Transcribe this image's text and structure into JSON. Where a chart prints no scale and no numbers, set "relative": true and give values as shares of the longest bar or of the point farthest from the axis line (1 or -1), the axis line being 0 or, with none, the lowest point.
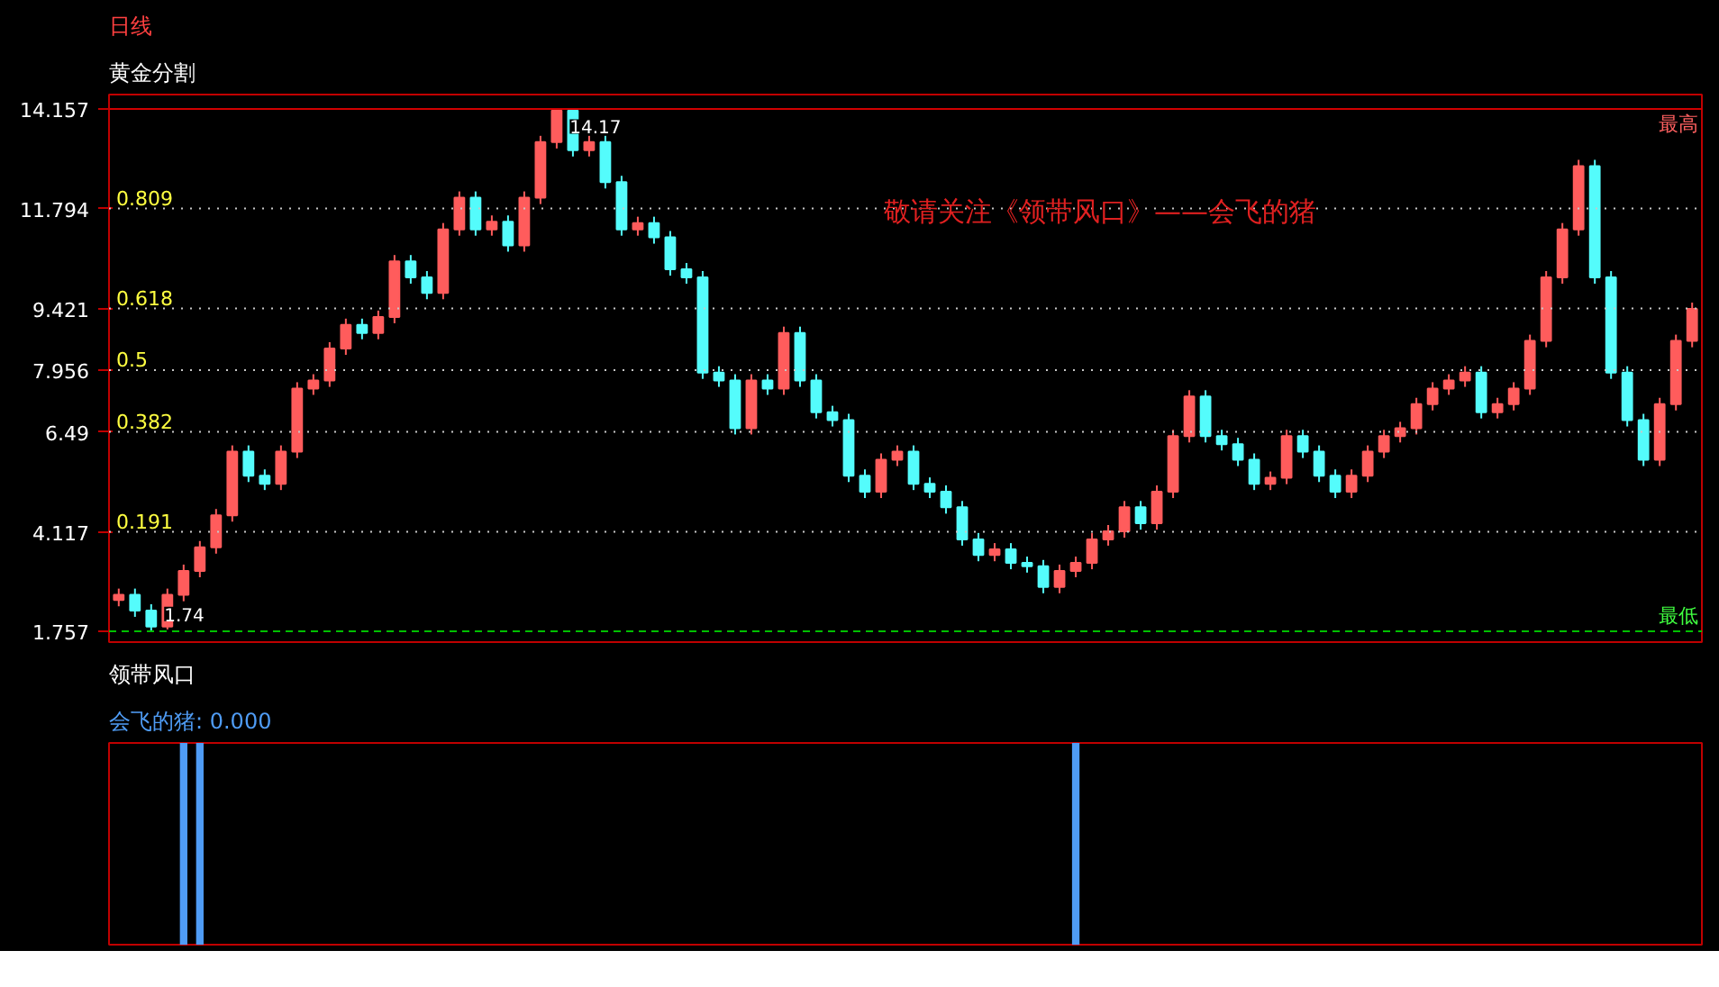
{
  "chart_data": [
    {
      "type": "candlestick",
      "title": "日线",
      "subtitle": "黄金分割",
      "categories": [
        null,
        null,
        null,
        null,
        null,
        null,
        null,
        null,
        null,
        null,
        null,
        null,
        null,
        null,
        null,
        null,
        null,
        null,
        null,
        null,
        null,
        null,
        null,
        null,
        null,
        null,
        null,
        null,
        null,
        null,
        null,
        null,
        null,
        null,
        null,
        null,
        null,
        null,
        null,
        null,
        null,
        null,
        null,
        null,
        null,
        null,
        null,
        null,
        null,
        null,
        null,
        null,
        null,
        null,
        null,
        null,
        null,
        null,
        null,
        null,
        null,
        null,
        null,
        null,
        null,
        null,
        null,
        null,
        null,
        null,
        null,
        null,
        null,
        null,
        null,
        null,
        null,
        null,
        null,
        null,
        null,
        null,
        null,
        null,
        null,
        null,
        null,
        null,
        null,
        null,
        null,
        null,
        null,
        null,
        null,
        null,
        null,
        null
      ],
      "ohlc": [
        [
          2.5,
          2.77,
          2.35,
          2.62
        ],
        [
          2.62,
          2.77,
          2.1,
          2.25
        ],
        [
          2.25,
          2.4,
          1.74,
          1.87
        ],
        [
          1.87,
          2.77,
          1.8,
          2.62
        ],
        [
          2.62,
          3.34,
          2.47,
          3.19
        ],
        [
          3.19,
          3.9,
          3.04,
          3.75
        ],
        [
          3.75,
          4.66,
          3.6,
          4.51
        ],
        [
          4.51,
          6.17,
          4.36,
          6.02
        ],
        [
          6.02,
          6.17,
          5.3,
          5.45
        ],
        [
          5.45,
          5.6,
          5.11,
          5.26
        ],
        [
          5.26,
          6.17,
          5.11,
          6.02
        ],
        [
          6.02,
          7.67,
          5.87,
          7.52
        ],
        [
          7.52,
          7.86,
          7.37,
          7.71
        ],
        [
          7.71,
          8.62,
          7.56,
          8.47
        ],
        [
          8.47,
          9.18,
          8.32,
          9.03
        ],
        [
          9.03,
          9.18,
          8.69,
          8.84
        ],
        [
          8.84,
          9.37,
          8.69,
          9.22
        ],
        [
          9.22,
          10.69,
          9.07,
          10.54
        ],
        [
          10.54,
          10.69,
          10.01,
          10.16
        ],
        [
          10.16,
          10.31,
          9.64,
          9.79
        ],
        [
          9.79,
          11.45,
          9.64,
          11.3
        ],
        [
          11.3,
          12.2,
          11.15,
          12.05
        ],
        [
          12.05,
          12.2,
          11.15,
          11.3
        ],
        [
          11.3,
          11.63,
          11.15,
          11.48
        ],
        [
          11.48,
          11.63,
          10.77,
          10.92
        ],
        [
          10.92,
          12.2,
          10.77,
          12.05
        ],
        [
          12.05,
          13.52,
          11.9,
          13.37
        ],
        [
          13.37,
          14.17,
          13.22,
          14.12
        ],
        [
          14.12,
          14.15,
          13.03,
          13.18
        ],
        [
          13.18,
          13.52,
          13.03,
          13.37
        ],
        [
          13.37,
          13.52,
          12.27,
          12.42
        ],
        [
          12.42,
          12.57,
          11.15,
          11.3
        ],
        [
          11.3,
          11.6,
          11.15,
          11.45
        ],
        [
          11.45,
          11.6,
          10.96,
          11.11
        ],
        [
          11.11,
          11.26,
          10.2,
          10.35
        ],
        [
          10.35,
          10.5,
          10.01,
          10.16
        ],
        [
          10.16,
          10.31,
          7.75,
          7.9
        ],
        [
          7.9,
          8.05,
          7.56,
          7.71
        ],
        [
          7.71,
          7.86,
          6.43,
          6.58
        ],
        [
          6.58,
          7.86,
          6.43,
          7.71
        ],
        [
          7.71,
          7.86,
          7.37,
          7.52
        ],
        [
          7.52,
          8.99,
          7.37,
          8.84
        ],
        [
          8.84,
          8.99,
          7.56,
          7.71
        ],
        [
          7.71,
          7.86,
          6.81,
          6.96
        ],
        [
          6.96,
          7.11,
          6.62,
          6.77
        ],
        [
          6.77,
          6.92,
          5.3,
          5.45
        ],
        [
          5.45,
          5.6,
          4.92,
          5.07
        ],
        [
          5.07,
          5.98,
          4.92,
          5.83
        ],
        [
          5.83,
          6.17,
          5.68,
          6.02
        ],
        [
          6.02,
          6.17,
          5.11,
          5.26
        ],
        [
          5.26,
          5.41,
          4.92,
          5.07
        ],
        [
          5.07,
          5.22,
          4.55,
          4.7
        ],
        [
          4.7,
          4.85,
          3.79,
          3.94
        ],
        [
          3.94,
          4.09,
          3.42,
          3.57
        ],
        [
          3.57,
          3.85,
          3.42,
          3.7
        ],
        [
          3.7,
          3.85,
          3.23,
          3.38
        ],
        [
          3.38,
          3.53,
          3.15,
          3.3
        ],
        [
          3.3,
          3.45,
          2.66,
          2.81
        ],
        [
          2.81,
          3.34,
          2.66,
          3.19
        ],
        [
          3.19,
          3.53,
          3.04,
          3.38
        ],
        [
          3.38,
          4.09,
          3.23,
          3.94
        ],
        [
          3.94,
          4.28,
          3.79,
          4.13
        ],
        [
          4.13,
          4.85,
          3.98,
          4.7
        ],
        [
          4.7,
          4.85,
          4.17,
          4.32
        ],
        [
          4.32,
          5.22,
          4.17,
          5.07
        ],
        [
          5.07,
          6.54,
          4.92,
          6.39
        ],
        [
          6.39,
          7.48,
          6.24,
          7.33
        ],
        [
          7.33,
          7.48,
          6.24,
          6.39
        ],
        [
          6.39,
          6.54,
          6.05,
          6.2
        ],
        [
          6.2,
          6.35,
          5.68,
          5.83
        ],
        [
          5.83,
          5.98,
          5.11,
          5.26
        ],
        [
          5.26,
          5.55,
          5.11,
          5.4
        ],
        [
          5.4,
          6.54,
          5.25,
          6.39
        ],
        [
          6.39,
          6.54,
          5.87,
          6.02
        ],
        [
          6.02,
          6.17,
          5.3,
          5.45
        ],
        [
          5.45,
          5.6,
          4.92,
          5.07
        ],
        [
          5.07,
          5.6,
          4.92,
          5.45
        ],
        [
          5.45,
          6.17,
          5.3,
          6.02
        ],
        [
          6.02,
          6.54,
          5.87,
          6.39
        ],
        [
          6.39,
          6.73,
          6.24,
          6.58
        ],
        [
          6.58,
          7.3,
          6.43,
          7.15
        ],
        [
          7.15,
          7.67,
          7.0,
          7.52
        ],
        [
          7.52,
          7.86,
          7.37,
          7.71
        ],
        [
          7.71,
          8.05,
          7.56,
          7.9
        ],
        [
          7.9,
          8.05,
          6.81,
          6.96
        ],
        [
          6.96,
          7.3,
          6.81,
          7.15
        ],
        [
          7.15,
          7.67,
          7.0,
          7.52
        ],
        [
          7.52,
          8.8,
          7.37,
          8.65
        ],
        [
          8.65,
          10.31,
          8.5,
          10.16
        ],
        [
          10.16,
          11.45,
          10.01,
          11.3
        ],
        [
          11.3,
          12.95,
          11.15,
          12.8
        ],
        [
          12.8,
          12.95,
          10.01,
          10.16
        ],
        [
          10.16,
          10.31,
          7.75,
          7.9
        ],
        [
          7.9,
          8.05,
          6.62,
          6.77
        ],
        [
          6.77,
          6.92,
          5.68,
          5.83
        ],
        [
          5.83,
          7.3,
          5.68,
          7.15
        ],
        [
          7.15,
          8.8,
          7.0,
          8.65
        ],
        [
          8.65,
          9.56,
          8.5,
          9.41
        ]
      ],
      "colors": [
        "#ff5c5c",
        "#54fcfc",
        "#54fcfc",
        "#ff5c5c",
        "#ff5c5c",
        "#ff5c5c",
        "#ff5c5c",
        "#ff5c5c",
        "#54fcfc",
        "#54fcfc",
        "#ff5c5c",
        "#ff5c5c",
        "#ff5c5c",
        "#ff5c5c",
        "#ff5c5c",
        "#54fcfc",
        "#ff5c5c",
        "#ff5c5c",
        "#54fcfc",
        "#54fcfc",
        "#ff5c5c",
        "#ff5c5c",
        "#54fcfc",
        "#ff5c5c",
        "#54fcfc",
        "#ff5c5c",
        "#ff5c5c",
        "#ff5c5c",
        "#54fcfc",
        "#ff5c5c",
        "#54fcfc",
        "#54fcfc",
        "#ff5c5c",
        "#54fcfc",
        "#54fcfc",
        "#54fcfc",
        "#54fcfc",
        "#54fcfc",
        "#54fcfc",
        "#ff5c5c",
        "#54fcfc",
        "#ff5c5c",
        "#54fcfc",
        "#54fcfc",
        "#54fcfc",
        "#54fcfc",
        "#54fcfc",
        "#ff5c5c",
        "#ff5c5c",
        "#54fcfc",
        "#54fcfc",
        "#54fcfc",
        "#54fcfc",
        "#54fcfc",
        "#ff5c5c",
        "#54fcfc",
        "#54fcfc",
        "#54fcfc",
        "#ff5c5c",
        "#ff5c5c",
        "#ff5c5c",
        "#ff5c5c",
        "#ff5c5c",
        "#54fcfc",
        "#ff5c5c",
        "#ff5c5c",
        "#ff5c5c",
        "#54fcfc",
        "#54fcfc",
        "#54fcfc",
        "#54fcfc",
        "#ff5c5c",
        "#ff5c5c",
        "#54fcfc",
        "#54fcfc",
        "#54fcfc",
        "#ff5c5c",
        "#ff5c5c",
        "#ff5c5c",
        "#ff5c5c",
        "#ff5c5c",
        "#ff5c5c",
        "#ff5c5c",
        "#ff5c5c",
        "#54fcfc",
        "#ff5c5c",
        "#ff5c5c",
        "#ff5c5c",
        "#ff5c5c",
        "#ff5c5c",
        "#ff5c5c",
        "#54fcfc",
        "#54fcfc",
        "#54fcfc",
        "#54fcfc",
        "#ff5c5c",
        "#ff5c5c",
        "#ff5c5c"
      ],
      "ylim": [
        1.5,
        14.5
      ],
      "yticks": [
        1.757,
        4.117,
        6.49,
        7.956,
        9.421,
        11.794,
        14.157
      ],
      "ref_lines": [
        {
          "axis": "y",
          "value": 14.157,
          "label": "最高",
          "color": "#d00000",
          "line_style": "solid"
        },
        {
          "axis": "y",
          "value": 11.794,
          "color": "#c8c8c8",
          "line_style": "dotted"
        },
        {
          "axis": "y",
          "value": 9.421,
          "color": "#c8c8c8",
          "line_style": "dotted"
        },
        {
          "axis": "y",
          "value": 7.956,
          "color": "#c8c8c8",
          "line_style": "dotted"
        },
        {
          "axis": "y",
          "value": 6.49,
          "color": "#c8c8c8",
          "line_style": "dotted"
        },
        {
          "axis": "y",
          "value": 4.117,
          "color": "#c8c8c8",
          "line_style": "dotted"
        },
        {
          "axis": "y",
          "value": 1.757,
          "label": "最低",
          "color": "#00c000",
          "line_style": "dashed"
        }
      ],
      "annotations": [
        "敬请关注《领带风口》——会飞的猪",
        "14.17",
        "1.74",
        {
          "text": "0.809",
          "y": 11.794
        },
        {
          "text": "0.618",
          "y": 9.421
        },
        {
          "text": "0.5",
          "y": 7.956
        },
        {
          "text": "0.382",
          "y": 6.49
        },
        {
          "text": "0.191",
          "y": 4.117
        }
      ]
    },
    {
      "type": "bar",
      "title": "领带风口",
      "relative": true,
      "categories": [
        null,
        null,
        null,
        null,
        null,
        null,
        null,
        null,
        null,
        null,
        null,
        null,
        null,
        null,
        null,
        null,
        null,
        null,
        null,
        null,
        null,
        null,
        null,
        null,
        null,
        null,
        null,
        null,
        null,
        null,
        null,
        null,
        null,
        null,
        null,
        null,
        null,
        null,
        null,
        null,
        null,
        null,
        null,
        null,
        null,
        null,
        null,
        null,
        null,
        null,
        null,
        null,
        null,
        null,
        null,
        null,
        null,
        null,
        null,
        null,
        null,
        null,
        null,
        null,
        null,
        null,
        null,
        null,
        null,
        null,
        null,
        null,
        null,
        null,
        null,
        null,
        null,
        null,
        null,
        null,
        null,
        null,
        null,
        null,
        null,
        null,
        null,
        null,
        null,
        null,
        null,
        null,
        null,
        null,
        null,
        null,
        null,
        null
      ],
      "series": [
        {
          "name": "会飞的猪: 0.000",
          "color": "#4f9cf5",
          "values": [
            null,
            null,
            null,
            null,
            1,
            1,
            null,
            null,
            null,
            null,
            null,
            null,
            null,
            null,
            null,
            null,
            null,
            null,
            null,
            null,
            null,
            null,
            null,
            null,
            null,
            null,
            null,
            null,
            null,
            null,
            null,
            null,
            null,
            null,
            null,
            null,
            null,
            null,
            null,
            null,
            null,
            null,
            null,
            null,
            null,
            null,
            null,
            null,
            null,
            null,
            null,
            null,
            null,
            null,
            null,
            null,
            null,
            null,
            null,
            1,
            null,
            null,
            null,
            null,
            null,
            null,
            null,
            null,
            null,
            null,
            null,
            null,
            null,
            null,
            null,
            null,
            null,
            null,
            null,
            null,
            null,
            null,
            null,
            null,
            null,
            null,
            null,
            null,
            null,
            null,
            null,
            null,
            null,
            null,
            null,
            null,
            null,
            null
          ]
        }
      ]
    }
  ]
}
